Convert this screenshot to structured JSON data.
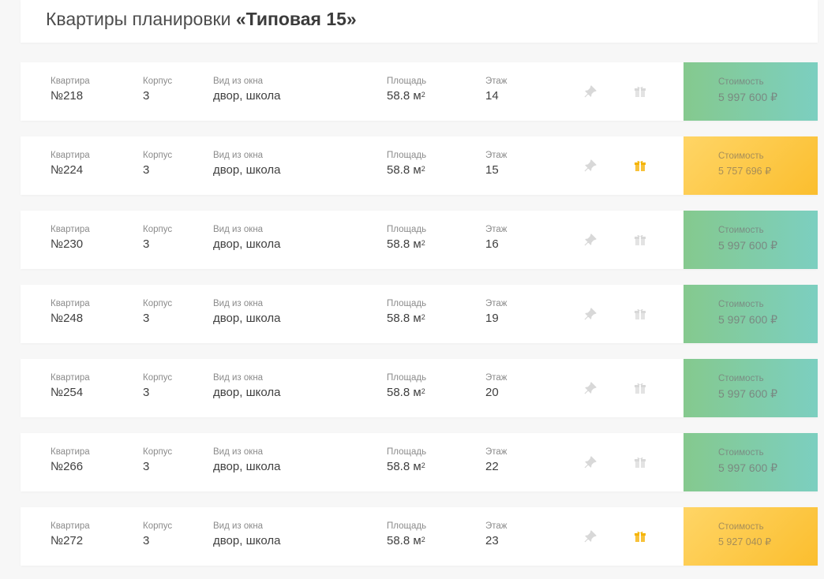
{
  "header": {
    "title_prefix": "Квартиры планировки ",
    "plan_name": "«Типовая 15»"
  },
  "labels": {
    "apartment": "Квартира",
    "block": "Корпус",
    "view": "Вид из окна",
    "area": "Площадь",
    "floor": "Этаж",
    "price": "Стоимость"
  },
  "colors": {
    "price_green": "#85c98e",
    "price_yellow": "#fbbe2e",
    "gift_active": "#f5b400",
    "icon_inactive": "#d8d8d8"
  },
  "rows": [
    {
      "apartment": "№218",
      "block": "3",
      "view": "двор, школа",
      "area": "58.8 м",
      "area_unit_sup": "2",
      "floor": "14",
      "price": "5 997 600 ₽",
      "price_style": "green",
      "gift": false
    },
    {
      "apartment": "№224",
      "block": "3",
      "view": "двор, школа",
      "area": "58.8 м",
      "area_unit_sup": "2",
      "floor": "15",
      "price": "5 757 696 ₽",
      "price_style": "yellow",
      "gift": true
    },
    {
      "apartment": "№230",
      "block": "3",
      "view": "двор, школа",
      "area": "58.8 м",
      "area_unit_sup": "2",
      "floor": "16",
      "price": "5 997 600 ₽",
      "price_style": "green",
      "gift": false
    },
    {
      "apartment": "№248",
      "block": "3",
      "view": "двор, школа",
      "area": "58.8 м",
      "area_unit_sup": "2",
      "floor": "19",
      "price": "5 997 600 ₽",
      "price_style": "green",
      "gift": false
    },
    {
      "apartment": "№254",
      "block": "3",
      "view": "двор, школа",
      "area": "58.8 м",
      "area_unit_sup": "2",
      "floor": "20",
      "price": "5 997 600 ₽",
      "price_style": "green",
      "gift": false
    },
    {
      "apartment": "№266",
      "block": "3",
      "view": "двор, школа",
      "area": "58.8 м",
      "area_unit_sup": "2",
      "floor": "22",
      "price": "5 997 600 ₽",
      "price_style": "green",
      "gift": false
    },
    {
      "apartment": "№272",
      "block": "3",
      "view": "двор, школа",
      "area": "58.8 м",
      "area_unit_sup": "2",
      "floor": "23",
      "price": "5 927 040 ₽",
      "price_style": "yellow",
      "gift": true
    }
  ]
}
